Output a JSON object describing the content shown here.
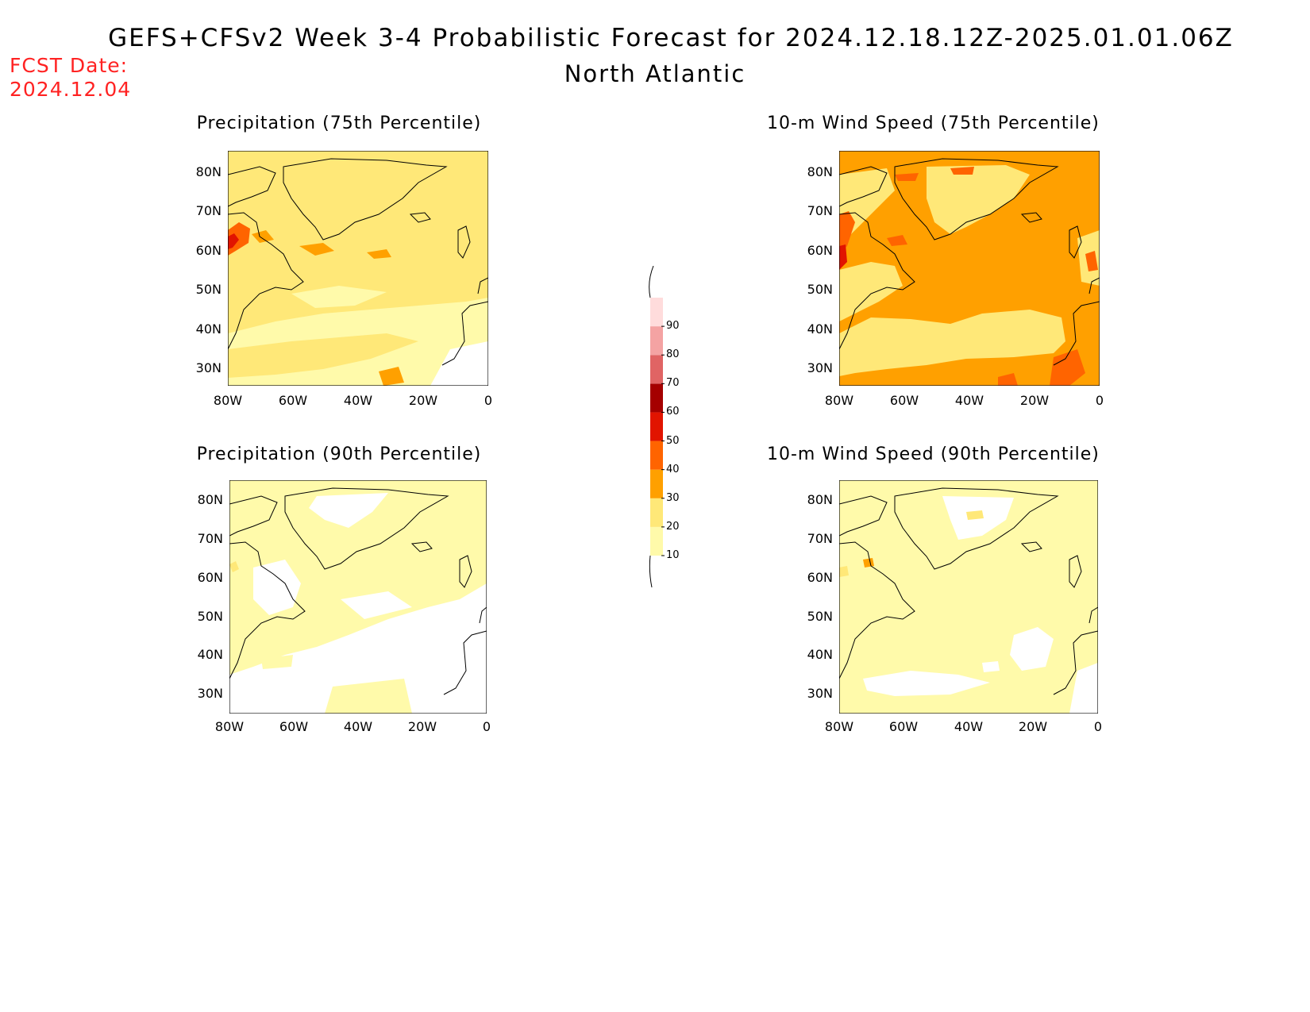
{
  "header": {
    "title": "GEFS+CFSv2 Week 3-4 Probabilistic Forecast for 2024.12.18.12Z-2025.01.01.06Z",
    "subtitle": "North Atlantic",
    "fcst_label": "FCST Date:",
    "fcst_date": "2024.12.04"
  },
  "panels": [
    {
      "title": "Precipitation (75th Percentile)",
      "field": "precip75"
    },
    {
      "title": "10-m Wind Speed (75th Percentile)",
      "field": "wind75"
    },
    {
      "title": "Precipitation (90th Percentile)",
      "field": "precip90"
    },
    {
      "title": "10-m Wind Speed (90th Percentile)",
      "field": "wind90"
    }
  ],
  "axes": {
    "lat_labels": [
      "80N",
      "70N",
      "60N",
      "50N",
      "40N",
      "30N"
    ],
    "lon_labels": [
      "80W",
      "60W",
      "40W",
      "20W",
      "0"
    ]
  },
  "colorbar": {
    "levels": [
      "10",
      "20",
      "30",
      "40",
      "50",
      "60",
      "70",
      "80",
      "90"
    ],
    "colors": [
      "#fffaaa",
      "#ffe878",
      "#ffa000",
      "#ff6400",
      "#e11400",
      "#a50000",
      "#e06464",
      "#f4a3a3",
      "#ffdcdc"
    ]
  },
  "colors": {
    "fcst": "#ff2222",
    "background": "#ffffff",
    "category_10_20": "#fffaaa",
    "category_20_30": "#ffe878",
    "category_30_40": "#ffa000",
    "category_40_50": "#ff6400"
  }
}
